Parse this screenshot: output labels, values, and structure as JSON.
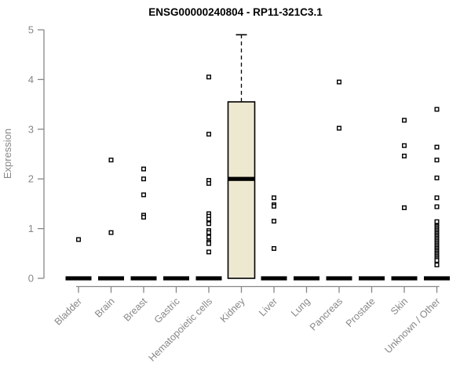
{
  "chart_data": {
    "type": "boxplot",
    "title": "ENSG00000240804 - RP11-321C3.1",
    "ylabel": "Expression",
    "xlabel": "",
    "ylim": [
      0,
      5
    ],
    "yticks": [
      0,
      1,
      2,
      3,
      4,
      5
    ],
    "grid": false,
    "legend": false,
    "marker": "open-square",
    "colors": {
      "box_fill": "#EDE8D0",
      "box_stroke": "#000000",
      "median": "#000000",
      "point_stroke": "#000000",
      "point_fill": "#ffffff",
      "axis": "#878787",
      "tick_label": "#878787",
      "title": "#000000"
    },
    "categories": [
      "Bladder",
      "Brain",
      "Breast",
      "Gastric",
      "Hematopoietic cells",
      "Kidney",
      "Liver",
      "Lung",
      "Pancreas",
      "Prostate",
      "Skin",
      "Unknown / Other"
    ],
    "groups": [
      {
        "label": "Bladder",
        "box": {
          "low": 0,
          "q1": 0,
          "median": 0,
          "q3": 0,
          "high": 0
        },
        "points": [
          0.78
        ]
      },
      {
        "label": "Brain",
        "box": {
          "low": 0,
          "q1": 0,
          "median": 0,
          "q3": 0,
          "high": 0
        },
        "points": [
          2.38,
          0.92
        ]
      },
      {
        "label": "Breast",
        "box": {
          "low": 0,
          "q1": 0,
          "median": 0,
          "q3": 0,
          "high": 0
        },
        "points": [
          2.2,
          2.0,
          1.68,
          1.27,
          1.23
        ]
      },
      {
        "label": "Gastric",
        "box": {
          "low": 0,
          "q1": 0,
          "median": 0,
          "q3": 0,
          "high": 0
        },
        "points": []
      },
      {
        "label": "Hematopoietic cells",
        "box": {
          "low": 0,
          "q1": 0,
          "median": 0,
          "q3": 0,
          "high": 0
        },
        "points": [
          4.05,
          2.9,
          1.97,
          1.91,
          1.3,
          1.25,
          1.19,
          1.1,
          0.96,
          0.92,
          0.83,
          0.73,
          0.7,
          0.53
        ]
      },
      {
        "label": "Kidney",
        "box": {
          "low": 0,
          "q1": 0,
          "median": 2.0,
          "q3": 3.55,
          "high": 4.9
        },
        "points": []
      },
      {
        "label": "Liver",
        "box": {
          "low": 0,
          "q1": 0,
          "median": 0,
          "q3": 0,
          "high": 0
        },
        "points": [
          1.62,
          1.48,
          1.45,
          1.15,
          0.6
        ]
      },
      {
        "label": "Lung",
        "box": {
          "low": 0,
          "q1": 0,
          "median": 0,
          "q3": 0,
          "high": 0
        },
        "points": []
      },
      {
        "label": "Pancreas",
        "box": {
          "low": 0,
          "q1": 0,
          "median": 0,
          "q3": 0,
          "high": 0
        },
        "points": [
          3.95,
          3.02
        ]
      },
      {
        "label": "Prostate",
        "box": {
          "low": 0,
          "q1": 0,
          "median": 0,
          "q3": 0,
          "high": 0
        },
        "points": []
      },
      {
        "label": "Skin",
        "box": {
          "low": 0,
          "q1": 0,
          "median": 0,
          "q3": 0,
          "high": 0
        },
        "points": [
          3.18,
          2.67,
          2.46,
          1.42
        ]
      },
      {
        "label": "Unknown / Other",
        "box": {
          "low": 0,
          "q1": 0,
          "median": 0,
          "q3": 0,
          "high": 0
        },
        "points": [
          3.4,
          2.64,
          2.38,
          2.02,
          1.62,
          1.44,
          1.14,
          1.05,
          1.02,
          0.99,
          0.96,
          0.93,
          0.9,
          0.87,
          0.84,
          0.81,
          0.78,
          0.75,
          0.72,
          0.69,
          0.66,
          0.63,
          0.6,
          0.57,
          0.54,
          0.51,
          0.48,
          0.45,
          0.42,
          0.39,
          0.36,
          0.27
        ]
      }
    ]
  }
}
